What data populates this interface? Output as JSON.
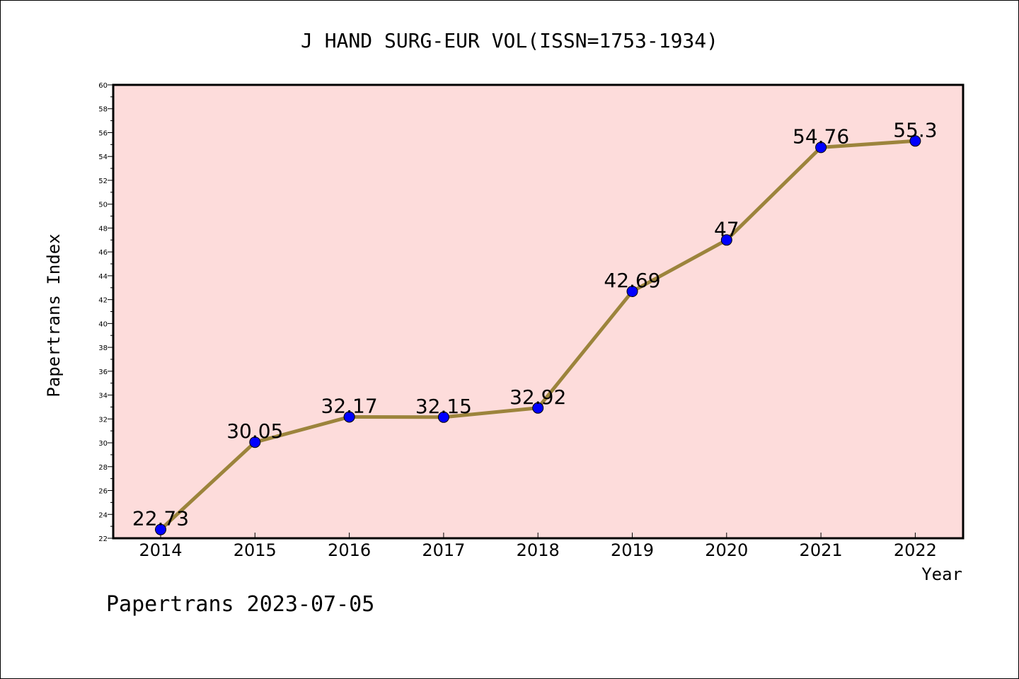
{
  "chart_data": {
    "type": "line",
    "title": "J HAND SURG-EUR VOL(ISSN=1753-1934)",
    "xlabel": "Year",
    "ylabel": "Papertrans Index",
    "footer": "Papertrans 2023-07-05",
    "categories": [
      "2014",
      "2015",
      "2016",
      "2017",
      "2018",
      "2019",
      "2020",
      "2021",
      "2022"
    ],
    "series": [
      {
        "values": [
          22.73,
          30.05,
          32.17,
          32.15,
          32.92,
          42.69,
          47,
          54.76,
          55.3
        ],
        "labels": [
          "22.73",
          "30.05",
          "32.17",
          "32.15",
          "32.92",
          "42.69",
          "47",
          "54.76",
          "55.3"
        ]
      }
    ],
    "ylim": [
      22,
      60
    ],
    "yticks": [
      "22",
      "24",
      "26",
      "28",
      "30",
      "32",
      "34",
      "36",
      "38",
      "40",
      "42",
      "44",
      "46",
      "48",
      "50",
      "52",
      "54",
      "56",
      "58",
      "60"
    ],
    "grid": false,
    "colors": {
      "plot_background": "#fddcdb",
      "line": "#9c843c",
      "marker": "#0000ff"
    }
  }
}
